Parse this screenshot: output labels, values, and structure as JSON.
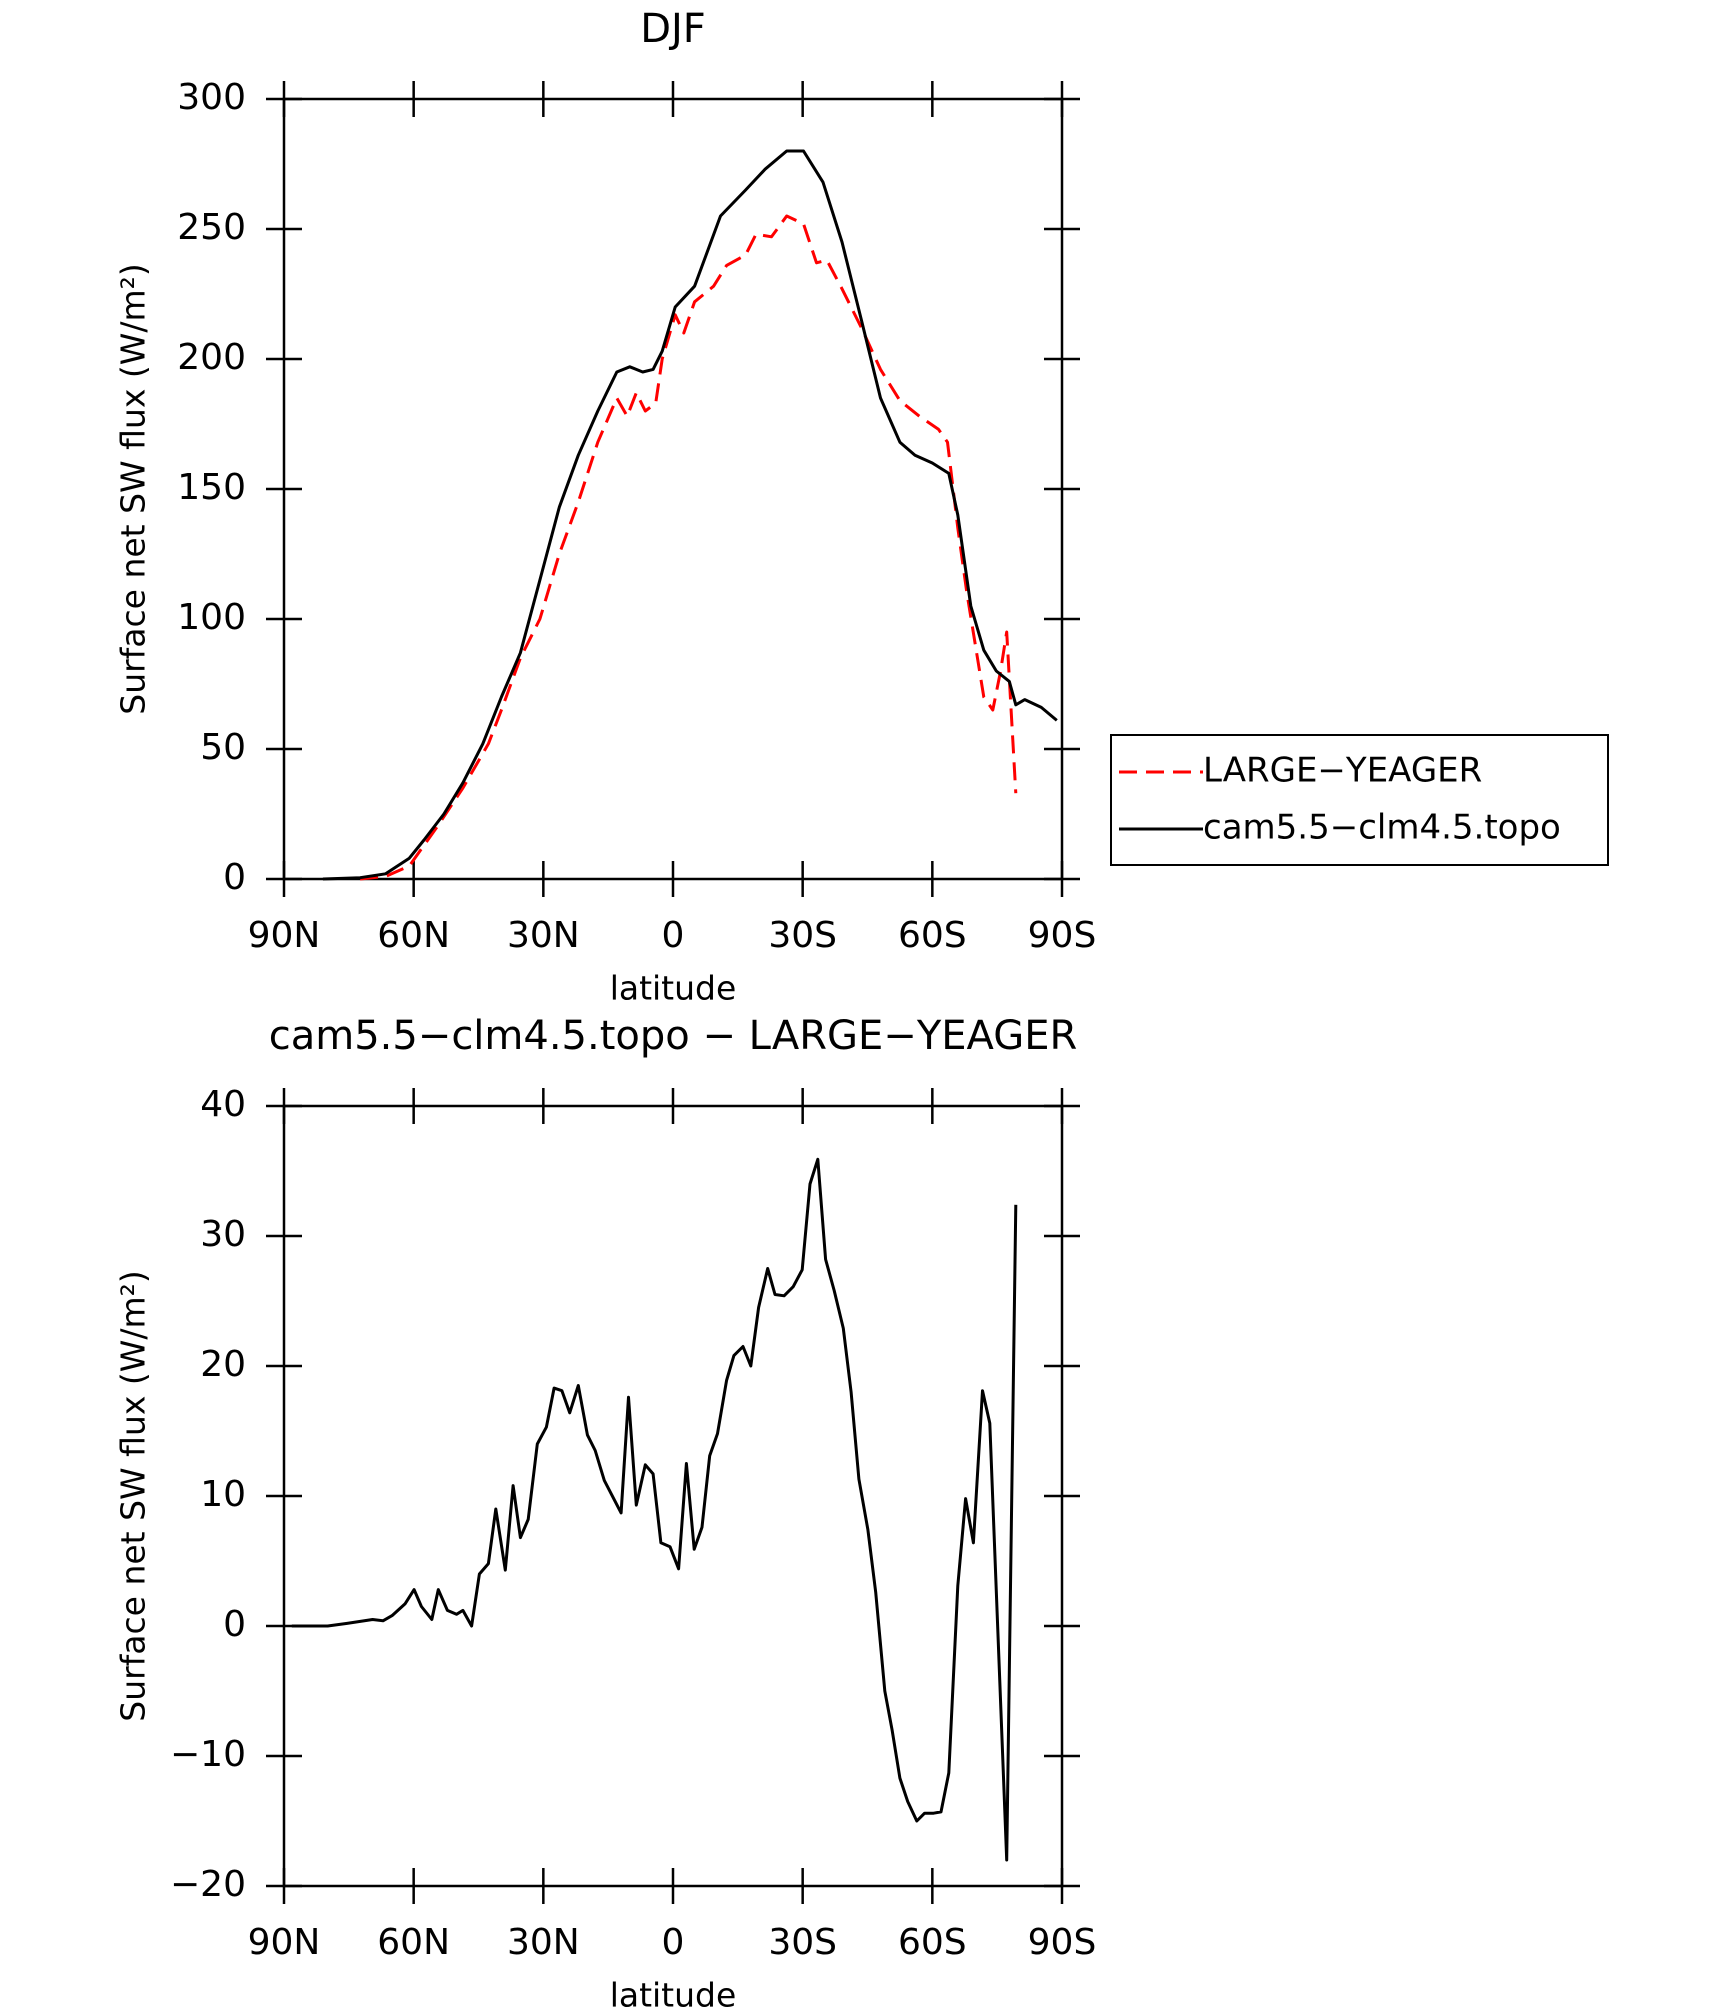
{
  "chart_data": [
    {
      "type": "line",
      "title": "DJF",
      "xlabel": "latitude",
      "ylabel": "Surface net SW flux (W/m²)",
      "xlim": [
        90,
        -90
      ],
      "xticks": [
        {
          "value": 90,
          "label": "90N"
        },
        {
          "value": 60,
          "label": "60N"
        },
        {
          "value": 30,
          "label": "30N"
        },
        0,
        {
          "value": -30,
          "label": "30S"
        },
        {
          "value": -60,
          "label": "60S"
        },
        {
          "value": -90,
          "label": "90S"
        }
      ],
      "ylim": [
        0,
        300
      ],
      "yticks": [
        0,
        50,
        100,
        150,
        200,
        250,
        300
      ],
      "legend": "right",
      "series": [
        {
          "name": "LARGE−YEAGER",
          "color": "#ff0000",
          "linestyle": "dashed",
          "x": [
            72.4,
            66.5,
            61,
            54.6,
            48.6,
            42.7,
            39.7,
            35.3,
            30.8,
            26.3,
            21.9,
            17.4,
            13,
            10.6,
            8.5,
            6.4,
            4,
            2.5,
            -0.5,
            -2.5,
            -5,
            -9.4,
            -12.4,
            -16.8,
            -19.2,
            -22.8,
            -26.3,
            -30.2,
            -33.2,
            -35.6,
            -39.1,
            -43.6,
            -48,
            -52.5,
            -57,
            -61.4,
            -63.5,
            -65.9,
            -68,
            -71.9,
            -74,
            -75.8,
            -77.2,
            -79.3
          ],
          "values": [
            0,
            1,
            5,
            20,
            35,
            52,
            65,
            85,
            100,
            125,
            145,
            168,
            185,
            178,
            187,
            180,
            183,
            200,
            217,
            210,
            222,
            228,
            236,
            240,
            248,
            247,
            255,
            252,
            237,
            238,
            227,
            212,
            196,
            184,
            178,
            173,
            168,
            135,
            110,
            70,
            65,
            80,
            95,
            33
          ]
        },
        {
          "name": "cam5.5−clm4.5.topo",
          "color": "#000000",
          "linestyle": "solid",
          "x": [
            81,
            72.4,
            66.5,
            61,
            57.6,
            53,
            48.6,
            44,
            39.7,
            35.3,
            30.8,
            26.3,
            21.9,
            17.4,
            13,
            10,
            7,
            4.6,
            2.5,
            -0.5,
            -5,
            -11,
            -16.8,
            -21.3,
            -26.3,
            -30.2,
            -34.7,
            -39.1,
            -43.6,
            -48,
            -52.5,
            -56,
            -60,
            -63.8,
            -65.9,
            -68.9,
            -71.9,
            -74.8,
            -77.8,
            -79.3,
            -81.4,
            -85.2,
            -88.8
          ],
          "values": [
            0,
            0.5,
            2,
            8,
            15,
            25,
            37,
            52,
            70,
            87,
            115,
            143,
            163,
            180,
            195,
            197,
            195,
            196,
            203,
            220,
            228,
            255,
            265,
            273,
            280,
            280,
            268,
            245,
            215,
            185,
            168,
            163,
            160,
            156,
            140,
            105,
            88,
            80,
            76,
            67,
            69,
            66,
            61
          ]
        }
      ]
    },
    {
      "type": "line",
      "title": "cam5.5−clm4.5.topo − LARGE−YEAGER",
      "xlabel": "latitude",
      "ylabel": "Surface net SW flux (W/m²)",
      "xlim": [
        90,
        -90
      ],
      "xticks": [
        {
          "value": 90,
          "label": "90N"
        },
        {
          "value": 60,
          "label": "60N"
        },
        {
          "value": 30,
          "label": "30N"
        },
        0,
        {
          "value": -30,
          "label": "30S"
        },
        {
          "value": -60,
          "label": "60S"
        },
        {
          "value": -90,
          "label": "90S"
        }
      ],
      "ylim": [
        -20,
        40
      ],
      "yticks": [
        {
          "value": -20,
          "label": "−20"
        },
        {
          "value": -10,
          "label": "−10"
        },
        0,
        10,
        20,
        30,
        40
      ],
      "series": [
        {
          "color": "#000000",
          "linestyle": "solid",
          "x": [
            88.2,
            79.9,
            75.4,
            69.5,
            67.1,
            65,
            62,
            59.9,
            58.2,
            55.8,
            54.3,
            52.2,
            50.1,
            48.6,
            46.6,
            44.8,
            42.7,
            41,
            38.8,
            37,
            35.3,
            33.5,
            31.4,
            29.3,
            27.5,
            25.7,
            23.9,
            21.9,
            19.8,
            18,
            15.9,
            12,
            10.3,
            8.5,
            6.4,
            4.6,
            2.8,
            0.7,
            -1.3,
            -3.1,
            -4.9,
            -6.7,
            -8.5,
            -10.3,
            -12.4,
            -14.1,
            -16.2,
            -18,
            -19.8,
            -21.9,
            -23.6,
            -25.7,
            -27.8,
            -29.9,
            -31.7,
            -33.5,
            -35.3,
            -37.3,
            -39.4,
            -41.2,
            -43,
            -45.1,
            -46.9,
            -49,
            -50.7,
            -52.5,
            -54.3,
            -56.4,
            -58.2,
            -60.3,
            -62,
            -63.8,
            -65.9,
            -67.7,
            -69.5,
            -71.6,
            -73.3,
            -77.2,
            -79.3
          ],
          "values": [
            0,
            0,
            0.2,
            0.5,
            0.4,
            0.8,
            1.7,
            2.8,
            1.5,
            0.5,
            2.8,
            1.2,
            0.9,
            1.2,
            0,
            4,
            4.8,
            9,
            4.3,
            10.8,
            6.8,
            8.2,
            14,
            15.3,
            18.3,
            18.1,
            16.4,
            18.5,
            14.7,
            13.5,
            11.2,
            8.7,
            17.6,
            9.3,
            12.4,
            11.7,
            6.4,
            6.1,
            4.4,
            12.5,
            5.9,
            7.6,
            13.1,
            14.8,
            18.9,
            20.8,
            21.5,
            20,
            24.5,
            27.5,
            25.5,
            25.4,
            26.1,
            27.4,
            34,
            35.9,
            28.2,
            25.8,
            22.9,
            18,
            11.3,
            7.4,
            2.6,
            -5,
            -8,
            -11.7,
            -13.5,
            -15,
            -14.4,
            -14.4,
            -14.3,
            -11.3,
            3.1,
            9.8,
            6.4,
            18.1,
            15.6,
            -18,
            32.4
          ]
        }
      ]
    }
  ]
}
